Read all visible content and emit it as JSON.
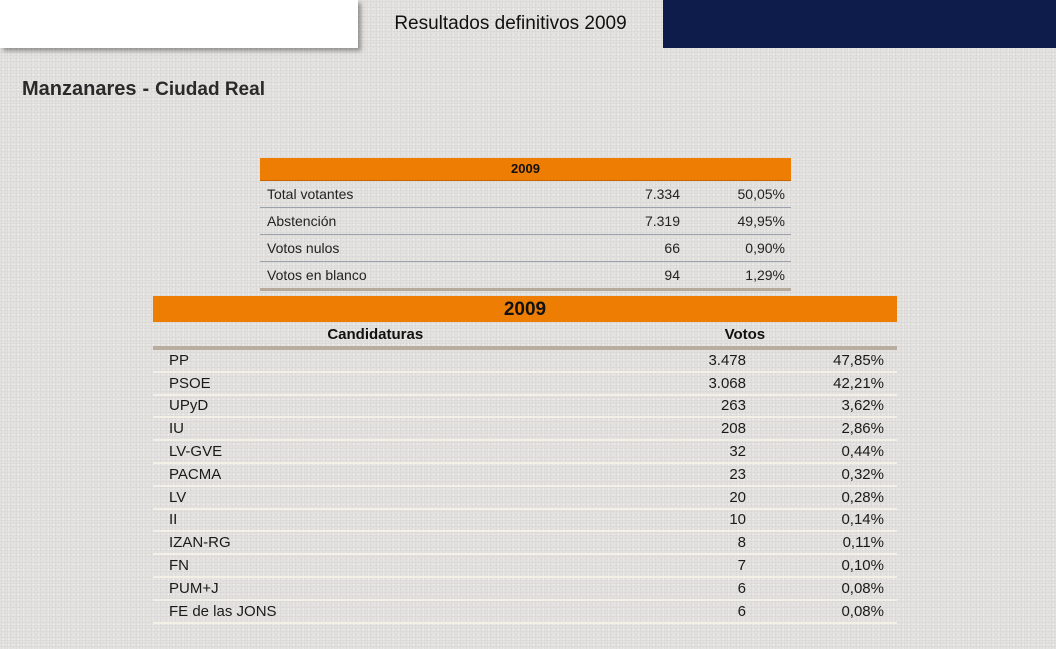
{
  "header": {
    "title": "Resultados definitivos 2009"
  },
  "page": {
    "municipality": "Manzanares",
    "separator": "-",
    "province": "Ciudad Real"
  },
  "summary": {
    "year": "2009",
    "rows": [
      {
        "label": "Total votantes",
        "value": "7.334",
        "percent": "50,05%"
      },
      {
        "label": "Abstención",
        "value": "7.319",
        "percent": "49,95%"
      },
      {
        "label": "Votos nulos",
        "value": "66",
        "percent": "0,90%"
      },
      {
        "label": "Votos en blanco",
        "value": "94",
        "percent": "1,29%"
      }
    ]
  },
  "candidates": {
    "year": "2009",
    "col_name": "Candidaturas",
    "col_votes": "Votos",
    "rows": [
      {
        "name": "PP",
        "votes": "3.478",
        "percent": "47,85%"
      },
      {
        "name": "PSOE",
        "votes": "3.068",
        "percent": "42,21%"
      },
      {
        "name": "UPyD",
        "votes": "263",
        "percent": "3,62%"
      },
      {
        "name": "IU",
        "votes": "208",
        "percent": "2,86%"
      },
      {
        "name": "LV-GVE",
        "votes": "32",
        "percent": "0,44%"
      },
      {
        "name": "PACMA",
        "votes": "23",
        "percent": "0,32%"
      },
      {
        "name": "LV",
        "votes": "20",
        "percent": "0,28%"
      },
      {
        "name": "II",
        "votes": "10",
        "percent": "0,14%"
      },
      {
        "name": "IZAN-RG",
        "votes": "8",
        "percent": "0,11%"
      },
      {
        "name": "FN",
        "votes": "7",
        "percent": "0,10%"
      },
      {
        "name": "PUM+J",
        "votes": "6",
        "percent": "0,08%"
      },
      {
        "name": "FE de las JONS",
        "votes": "6",
        "percent": "0,08%"
      }
    ]
  },
  "colors": {
    "accent_orange": "#ee7d03",
    "header_navy": "#0d1c4a",
    "background": "#e4e2df"
  }
}
